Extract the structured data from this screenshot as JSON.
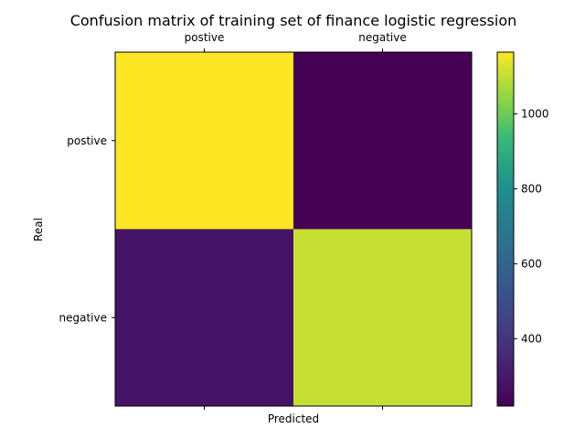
{
  "chart_data": {
    "type": "heatmap",
    "title": "Confusion matrix of training set of finance logistic regression",
    "xlabel": "Predicted",
    "ylabel": "Real",
    "x_categories": [
      "postive",
      "negative"
    ],
    "y_categories": [
      "postive",
      "negative"
    ],
    "values": [
      [
        1165,
        220
      ],
      [
        285,
        1105
      ]
    ],
    "colormap": "viridis",
    "colorbar": {
      "range": [
        220,
        1165
      ],
      "ticks": [
        400,
        600,
        800,
        1000
      ]
    },
    "grid": false
  }
}
